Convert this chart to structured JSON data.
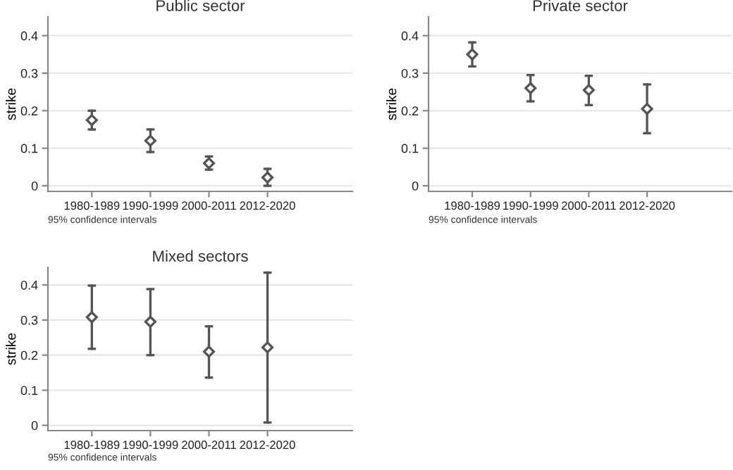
{
  "chart_data": [
    {
      "type": "scatter",
      "title": "Public sector",
      "ylabel": "strike",
      "categories": [
        "1980-1989",
        "1990-1999",
        "2000-2011",
        "2012-2020"
      ],
      "series": [
        {
          "color": "#555555",
          "values": [
            0.175,
            0.12,
            0.06,
            0.022
          ],
          "errors": [
            [
              0.15,
              0.2
            ],
            [
              0.09,
              0.15
            ],
            [
              0.043,
              0.078
            ],
            [
              0.0,
              0.045
            ]
          ]
        }
      ],
      "ylim": [
        -0.015,
        0.45
      ],
      "yticks": [
        0,
        0.1,
        0.2,
        0.3,
        0.4
      ],
      "grid": "y",
      "marker": "diamond",
      "annotations": [
        "95% confidence intervals"
      ]
    },
    {
      "type": "scatter",
      "title": "Private sector",
      "ylabel": "strike",
      "categories": [
        "1980-1989",
        "1990-1999",
        "2000-2011",
        "2012-2020"
      ],
      "series": [
        {
          "color": "#555555",
          "values": [
            0.35,
            0.26,
            0.255,
            0.205
          ],
          "errors": [
            [
              0.318,
              0.382
            ],
            [
              0.225,
              0.295
            ],
            [
              0.215,
              0.293
            ],
            [
              0.14,
              0.27
            ]
          ]
        }
      ],
      "ylim": [
        -0.015,
        0.45
      ],
      "yticks": [
        0,
        0.1,
        0.2,
        0.3,
        0.4
      ],
      "grid": "y",
      "marker": "diamond",
      "annotations": [
        "95% confidence intervals"
      ]
    },
    {
      "type": "scatter",
      "title": "Mixed sectors",
      "ylabel": "strike",
      "categories": [
        "1980-1989",
        "1990-1999",
        "2000-2011",
        "2012-2020"
      ],
      "series": [
        {
          "color": "#555555",
          "values": [
            0.308,
            0.295,
            0.21,
            0.222
          ],
          "errors": [
            [
              0.218,
              0.398
            ],
            [
              0.2,
              0.388
            ],
            [
              0.136,
              0.282
            ],
            [
              0.008,
              0.435
            ]
          ]
        }
      ],
      "ylim": [
        -0.015,
        0.45
      ],
      "yticks": [
        0,
        0.1,
        0.2,
        0.3,
        0.4
      ],
      "grid": "y",
      "marker": "diamond",
      "annotations": [
        "95% confidence intervals"
      ]
    }
  ]
}
